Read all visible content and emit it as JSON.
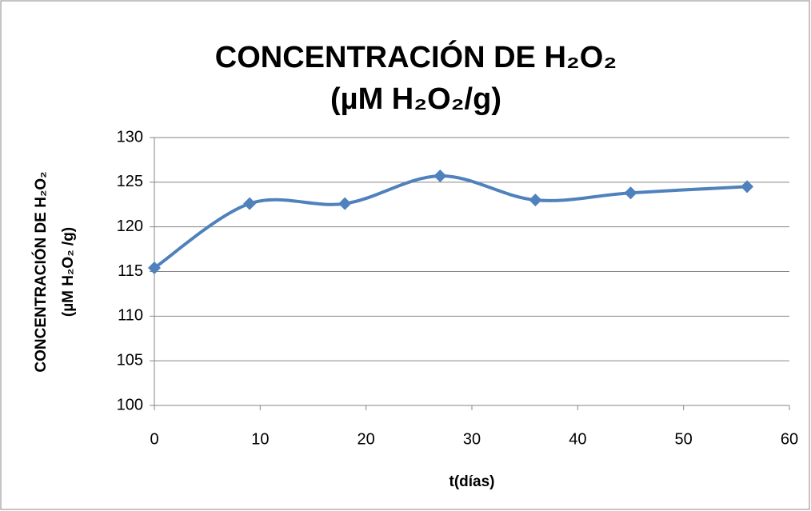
{
  "chart_data": {
    "type": "line",
    "title": [
      "CONCENTRACIÓN DE H₂O₂",
      "(µM H₂O₂/g)"
    ],
    "y_label": [
      "CONCENTRACIÓN DE H₂O₂",
      "(µM H₂O₂ /g)"
    ],
    "x_label": "t(días)",
    "x": [
      0,
      9,
      18,
      27,
      36,
      45,
      56
    ],
    "values": [
      115.4,
      122.6,
      122.6,
      125.7,
      123.0,
      123.8,
      124.5
    ],
    "color": "#4f81bd",
    "xlim": [
      0,
      60
    ],
    "xticks": [
      0,
      10,
      20,
      30,
      40,
      50,
      60
    ],
    "ylim": [
      100,
      130
    ],
    "yticks": [
      100,
      105,
      110,
      115,
      120,
      125,
      130
    ],
    "grid": true,
    "smooth": true
  }
}
